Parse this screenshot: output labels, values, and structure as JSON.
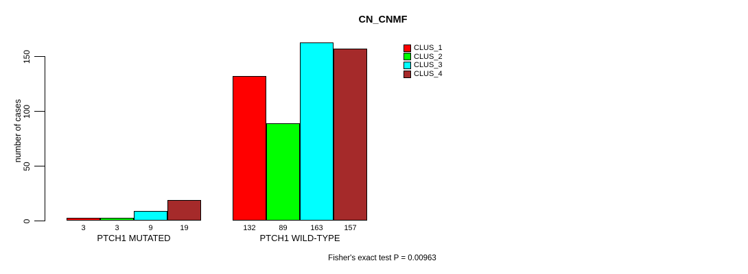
{
  "title": "CN_CNMF",
  "y_axis": {
    "label": "number of cases"
  },
  "footer": "Fisher's exact test P = 0.00963",
  "chart_data": {
    "type": "bar",
    "title": "CN_CNMF",
    "xlabel": "",
    "ylabel": "number of cases",
    "ylim": [
      0,
      165
    ],
    "yticks": [
      0,
      50,
      100,
      150
    ],
    "grid": false,
    "legend_position": "top-right-inside",
    "categories": [
      "PTCH1 MUTATED",
      "PTCH1 WILD-TYPE"
    ],
    "series": [
      {
        "name": "CLUS_1",
        "color": "#ff0000",
        "values": [
          3,
          132
        ]
      },
      {
        "name": "CLUS_2",
        "color": "#00ff00",
        "values": [
          3,
          89
        ]
      },
      {
        "name": "CLUS_3",
        "color": "#00ffff",
        "values": [
          9,
          163
        ]
      },
      {
        "name": "CLUS_4",
        "color": "#a52a2a",
        "values": [
          19,
          157
        ]
      }
    ],
    "bar_value_labels_shown": true,
    "annotation": "Fisher's exact test P = 0.00963"
  }
}
